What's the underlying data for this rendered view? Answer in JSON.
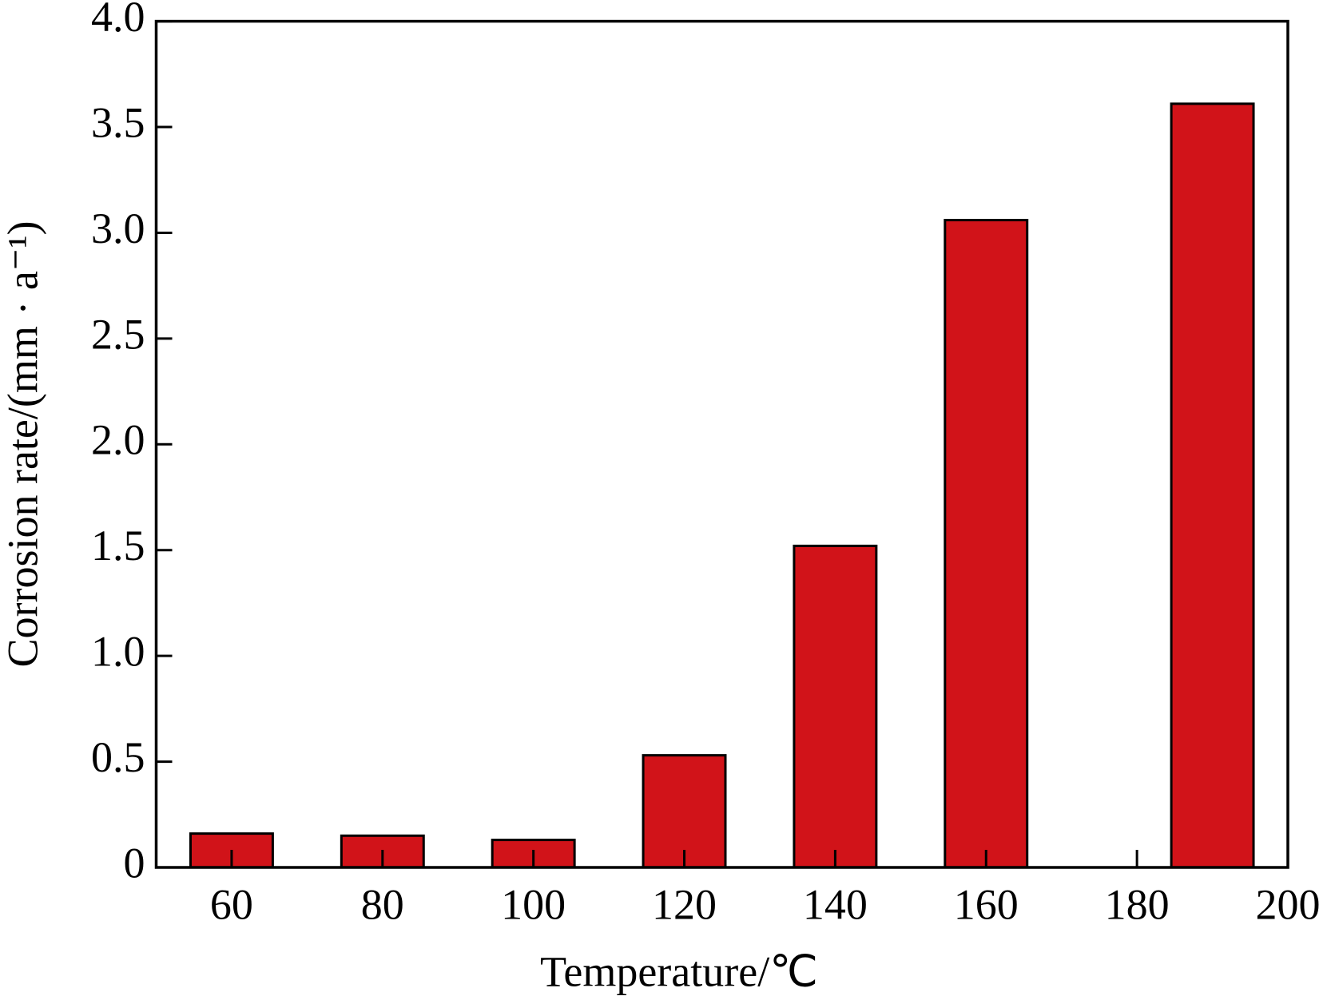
{
  "chart_data": {
    "type": "bar",
    "xlabel": "Temperature/℃",
    "ylabel": "Corrosion rate/(mm · a⁻¹)",
    "x": [
      60,
      80,
      100,
      120,
      140,
      160,
      190
    ],
    "values": [
      0.16,
      0.15,
      0.13,
      0.53,
      1.52,
      3.06,
      3.61
    ],
    "color": "#d11319",
    "xlim": [
      50,
      200
    ],
    "xticks": [
      60,
      80,
      100,
      120,
      140,
      160,
      180,
      200
    ],
    "ylim": [
      0,
      4
    ],
    "yticks": [
      0,
      0.5,
      {
        "value": 1,
        "label": "1.0"
      },
      1.5,
      {
        "value": 2,
        "label": "2.0"
      },
      2.5,
      {
        "value": 3,
        "label": "3.0"
      },
      3.5,
      {
        "value": 4,
        "label": "4.0"
      }
    ]
  }
}
